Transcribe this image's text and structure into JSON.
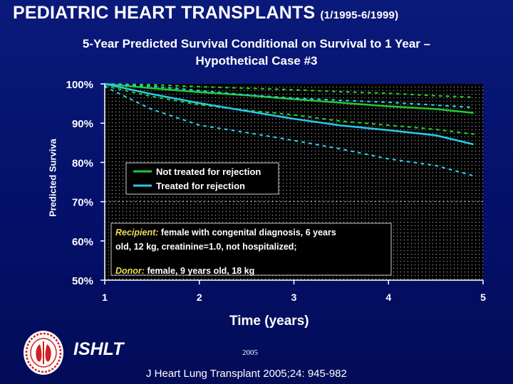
{
  "header": {
    "title": "PEDIATRIC HEART TRANSPLANTS",
    "date_range": "(1/1995-6/1999)",
    "subtitle_line1": "5-Year Predicted Survival Conditional on Survival to 1 Year –",
    "subtitle_line2": "Hypothetical Case #3"
  },
  "chart_data": {
    "type": "line",
    "ylabel": "Predicted Surviva",
    "xlabel": "Time (years)",
    "xlim": [
      1,
      5
    ],
    "ylim": [
      50,
      100
    ],
    "x_ticks": [
      "1",
      "2",
      "3",
      "4",
      "5"
    ],
    "y_ticks": [
      {
        "value": 100,
        "label": "100%"
      },
      {
        "value": 90,
        "label": "90%"
      },
      {
        "value": 80,
        "label": "80%"
      },
      {
        "value": 70,
        "label": "70%"
      },
      {
        "value": 60,
        "label": "60%"
      },
      {
        "value": 50,
        "label": "50%"
      }
    ],
    "reference_line_y": 70,
    "legend_position": "center-left",
    "series": [
      {
        "name": "Not treated for rejection",
        "color": "#22c832",
        "x": [
          1.0,
          1.5,
          2.0,
          2.5,
          3.0,
          3.5,
          4.0,
          4.5,
          4.9
        ],
        "y": [
          100,
          98.9,
          97.9,
          97.1,
          96.1,
          95.2,
          94.3,
          93.6,
          92.6
        ],
        "ci_upper": [
          100,
          99.8,
          99.3,
          98.9,
          98.5,
          98.0,
          97.6,
          97.0,
          96.6
        ],
        "ci_lower": [
          99.5,
          96.8,
          94.7,
          93.3,
          92.1,
          90.5,
          89.5,
          88.4,
          87.2
        ]
      },
      {
        "name": "Treated for rejection",
        "color": "#28c8e6",
        "x": [
          1.0,
          1.5,
          2.0,
          2.5,
          3.0,
          3.5,
          4.0,
          4.5,
          4.9
        ],
        "y": [
          100,
          97.4,
          95.1,
          93.1,
          91.1,
          89.4,
          88.2,
          86.9,
          84.6
        ],
        "ci_upper": [
          100,
          99.4,
          98.3,
          97.2,
          96.4,
          95.8,
          95.3,
          94.6,
          94.0
        ],
        "ci_lower": [
          99.3,
          93.5,
          89.5,
          87.6,
          85.6,
          83.4,
          80.9,
          79.2,
          76.6
        ]
      }
    ],
    "annotation": {
      "recipient_label": "Recipient:",
      "recipient_text": "female with congenital diagnosis, 6 years old, 12 kg, creatinine=1.0, not hospitalized;",
      "donor_label": "Donor:",
      "donor_text": "female, 9 years old, 18 kg"
    }
  },
  "footer": {
    "organization": "ISHLT",
    "year": "2005",
    "citation": "J Heart Lung Transplant 2005;24: 945-982"
  },
  "colors": {
    "background": "#04106a",
    "plot_background": "#000000",
    "axis": "#ffffff",
    "annotation_box_border": "#c8c8c8",
    "annotation_label": "#f0dc5a",
    "logo_red": "#d22020"
  },
  "logo": {
    "icon": "ishlt-seal-icon"
  }
}
